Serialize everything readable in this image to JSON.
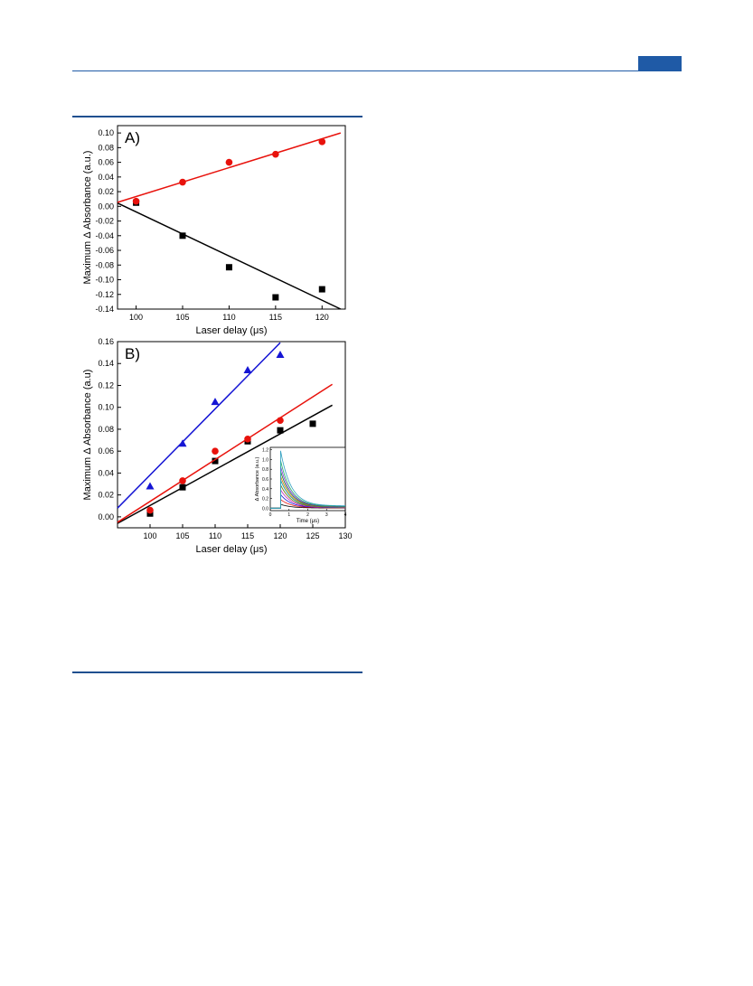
{
  "colors": {
    "accent": "#1f5aa6",
    "black": "#000000",
    "red": "#e8120c",
    "blue": "#1515d4"
  },
  "chart_data": [
    {
      "type": "scatter",
      "panel_label": "A)",
      "xlabel": "Laser delay (μs)",
      "ylabel": "Maximum Δ Absorbance (a.u.)",
      "xlim": [
        98,
        122.5
      ],
      "ylim": [
        -0.14,
        0.11
      ],
      "xticks": [
        100,
        105,
        110,
        115,
        120
      ],
      "yticks": [
        0.1,
        0.08,
        0.06,
        0.04,
        0.02,
        0.0,
        -0.02,
        -0.04,
        -0.06,
        -0.08,
        -0.1,
        -0.12,
        -0.14
      ],
      "ytick_labels": [
        "0.10",
        "0.08",
        "0.06",
        "0.04",
        "0.02",
        "0.00",
        "-0.02",
        "-0.04",
        "-0.06",
        "-0.08",
        "-0.10",
        "-0.12",
        "-0.14"
      ],
      "xtick_labels": [
        "100",
        "105",
        "110",
        "115",
        "120"
      ],
      "series": [
        {
          "marker": "square",
          "color": "#000000",
          "x": [
            100,
            105,
            110,
            115,
            120
          ],
          "y": [
            0.005,
            -0.04,
            -0.083,
            -0.124,
            -0.113
          ],
          "fit": {
            "x": [
              98,
              122
            ],
            "y": [
              0.0045,
              -0.14
            ]
          }
        },
        {
          "marker": "circle",
          "color": "#e8120c",
          "x": [
            100,
            105,
            110,
            115,
            120
          ],
          "y": [
            0.007,
            0.033,
            0.06,
            0.071,
            0.088
          ],
          "fit": {
            "x": [
              98,
              122
            ],
            "y": [
              0.0055,
              0.1
            ]
          }
        }
      ]
    },
    {
      "type": "scatter",
      "panel_label": "B)",
      "xlabel": "Laser delay (μs)",
      "ylabel": "Maximum Δ Absorbance (a.u)",
      "xlim": [
        95,
        130
      ],
      "ylim": [
        -0.01,
        0.16
      ],
      "xticks": [
        100,
        105,
        110,
        115,
        120,
        125,
        130
      ],
      "yticks": [
        0.16,
        0.14,
        0.12,
        0.1,
        0.08,
        0.06,
        0.04,
        0.02,
        0.0
      ],
      "ytick_labels": [
        "0.16",
        "0.14",
        "0.12",
        "0.10",
        "0.08",
        "0.06",
        "0.04",
        "0.02",
        "0.00"
      ],
      "xtick_labels": [
        "100",
        "105",
        "110",
        "115",
        "120",
        "125",
        "130"
      ],
      "series": [
        {
          "marker": "square",
          "color": "#000000",
          "x": [
            100,
            105,
            110,
            115,
            120,
            125
          ],
          "y": [
            0.003,
            0.027,
            0.051,
            0.069,
            0.079,
            0.085
          ],
          "fit": {
            "x": [
              95,
              128
            ],
            "y": [
              -0.006,
              0.102
            ]
          }
        },
        {
          "marker": "circle",
          "color": "#e8120c",
          "x": [
            100,
            105,
            110,
            115,
            120
          ],
          "y": [
            0.006,
            0.033,
            0.06,
            0.071,
            0.088
          ],
          "fit": {
            "x": [
              95,
              128
            ],
            "y": [
              -0.005,
              0.121
            ]
          }
        },
        {
          "marker": "triangle",
          "color": "#1515d4",
          "x": [
            100,
            105,
            110,
            115,
            120
          ],
          "y": [
            0.028,
            0.067,
            0.105,
            0.134,
            0.148
          ],
          "fit": {
            "x": [
              95,
              120
            ],
            "y": [
              0.008,
              0.159
            ]
          }
        }
      ]
    },
    {
      "type": "line",
      "role": "inset",
      "xlabel": "Time (μs)",
      "ylabel": "Δ Absorbance (a.u.)",
      "xlim": [
        0,
        4
      ],
      "ylim": [
        -0.05,
        1.25
      ],
      "xticks": [
        0,
        1,
        2,
        3,
        4
      ],
      "xtick_labels": [
        "0",
        "1",
        "2",
        "3",
        "4"
      ],
      "yticks": [
        0.0,
        0.2,
        0.4,
        0.6,
        0.8,
        1.0,
        1.2
      ],
      "ytick_labels": [
        "0.0",
        "0.2",
        "0.4",
        "0.6",
        "0.8",
        "1.0",
        "1.2"
      ],
      "series": [
        {
          "color": "#000000",
          "peak": 0.08
        },
        {
          "color": "#e8120c",
          "peak": 0.18
        },
        {
          "color": "#1515d4",
          "peak": 0.28
        },
        {
          "color": "#c020c0",
          "peak": 0.38
        },
        {
          "color": "#6b6b00",
          "peak": 0.48
        },
        {
          "color": "#00a0a0",
          "peak": 0.58
        },
        {
          "color": "#e07000",
          "peak": 0.66
        },
        {
          "color": "#0a7a2a",
          "peak": 0.76
        },
        {
          "color": "#8a2be2",
          "peak": 0.86
        },
        {
          "color": "#20b060",
          "peak": 0.98
        },
        {
          "color": "#30a0c0",
          "peak": 1.18
        }
      ]
    }
  ]
}
